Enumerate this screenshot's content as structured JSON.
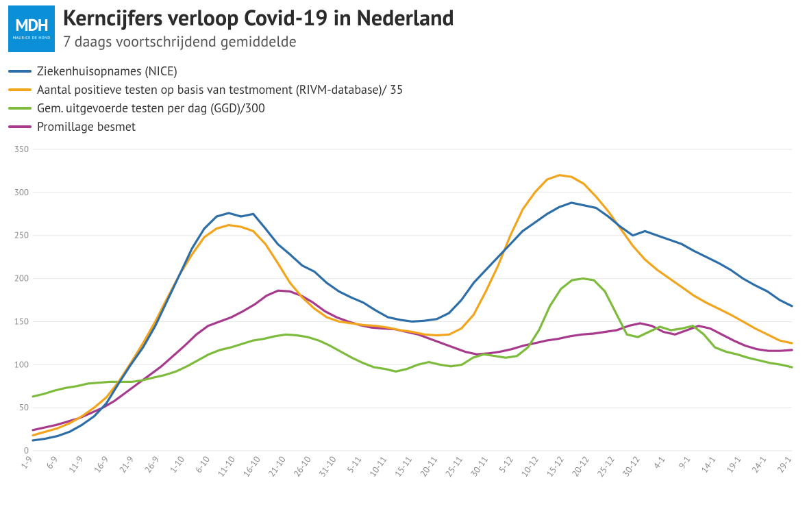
{
  "logo": {
    "big": "MDH",
    "small": "MAURICE DE HOND"
  },
  "title": "Kerncijfers verloop Covid-19 in Nederland",
  "subtitle": "7 daags voortschrijdend gemiddelde",
  "chart": {
    "type": "line",
    "background_color": "#ffffff",
    "grid_color": "#e6e6e6",
    "axis_label_color": "#888888",
    "axis_label_fontsize": 13,
    "line_width": 3.2,
    "y": {
      "min": 0,
      "max": 350,
      "step": 50
    },
    "x_labels": [
      "1-9",
      "6-9",
      "11-9",
      "16-9",
      "21-9",
      "26-9",
      "1-10",
      "6-10",
      "11-10",
      "16-10",
      "21-10",
      "26-10",
      "31-10",
      "5-11",
      "10-11",
      "15-11",
      "20-11",
      "25-11",
      "30-11",
      "5-12",
      "10-12",
      "15-12",
      "20-12",
      "25-12",
      "30-12",
      "4-1",
      "9-1",
      "14-1",
      "19-1",
      "24-1",
      "29-1"
    ],
    "series": [
      {
        "label": "Ziekenhuisopnames (NICE)",
        "color": "#2d6ea8",
        "values": [
          12,
          14,
          17,
          22,
          30,
          40,
          55,
          78,
          100,
          120,
          145,
          175,
          205,
          235,
          258,
          272,
          276,
          272,
          275,
          258,
          240,
          228,
          215,
          208,
          195,
          185,
          178,
          172,
          163,
          155,
          152,
          150,
          151,
          153,
          160,
          175,
          195,
          210,
          225,
          240,
          255,
          265,
          275,
          283,
          288,
          285,
          282,
          272,
          260,
          250,
          255,
          250,
          245,
          240,
          232,
          225,
          218,
          210,
          200,
          192,
          185,
          175,
          168
        ]
      },
      {
        "label": "Aantal positieve testen op basis van testmoment (RIVM-database)/ 35",
        "color": "#f2a51c",
        "values": [
          18,
          22,
          26,
          32,
          40,
          50,
          62,
          80,
          102,
          125,
          150,
          178,
          205,
          228,
          248,
          258,
          262,
          260,
          255,
          240,
          218,
          195,
          178,
          165,
          155,
          150,
          148,
          146,
          145,
          143,
          140,
          138,
          135,
          134,
          135,
          142,
          158,
          185,
          215,
          250,
          280,
          300,
          315,
          320,
          318,
          310,
          295,
          278,
          258,
          238,
          222,
          210,
          200,
          190,
          180,
          172,
          165,
          158,
          150,
          142,
          135,
          128,
          125
        ]
      },
      {
        "label": "Gem. uitgevoerde testen per dag (GGD)/300",
        "color": "#7cbb3b",
        "values": [
          63,
          66,
          70,
          73,
          75,
          78,
          79,
          80,
          80,
          80,
          82,
          85,
          88,
          92,
          98,
          105,
          112,
          117,
          120,
          124,
          128,
          130,
          133,
          135,
          134,
          132,
          128,
          122,
          115,
          108,
          102,
          97,
          95,
          92,
          95,
          100,
          103,
          100,
          98,
          100,
          108,
          112,
          110,
          108,
          110,
          120,
          140,
          168,
          188,
          198,
          200,
          198,
          185,
          160,
          135,
          132,
          138,
          144,
          140,
          142,
          145,
          135,
          120,
          115,
          112,
          108,
          105,
          102,
          100,
          97
        ]
      },
      {
        "label": "Promillage besmet",
        "color": "#a73a8c",
        "values": [
          24,
          27,
          30,
          34,
          38,
          44,
          50,
          58,
          68,
          78,
          88,
          98,
          110,
          122,
          135,
          145,
          150,
          155,
          162,
          170,
          180,
          186,
          185,
          180,
          172,
          162,
          155,
          150,
          146,
          143,
          142,
          141,
          138,
          135,
          130,
          125,
          120,
          115,
          112,
          113,
          115,
          118,
          122,
          125,
          128,
          130,
          133,
          135,
          136,
          138,
          140,
          145,
          148,
          145,
          138,
          135,
          140,
          145,
          142,
          135,
          128,
          122,
          118,
          116,
          116,
          117
        ]
      }
    ]
  }
}
